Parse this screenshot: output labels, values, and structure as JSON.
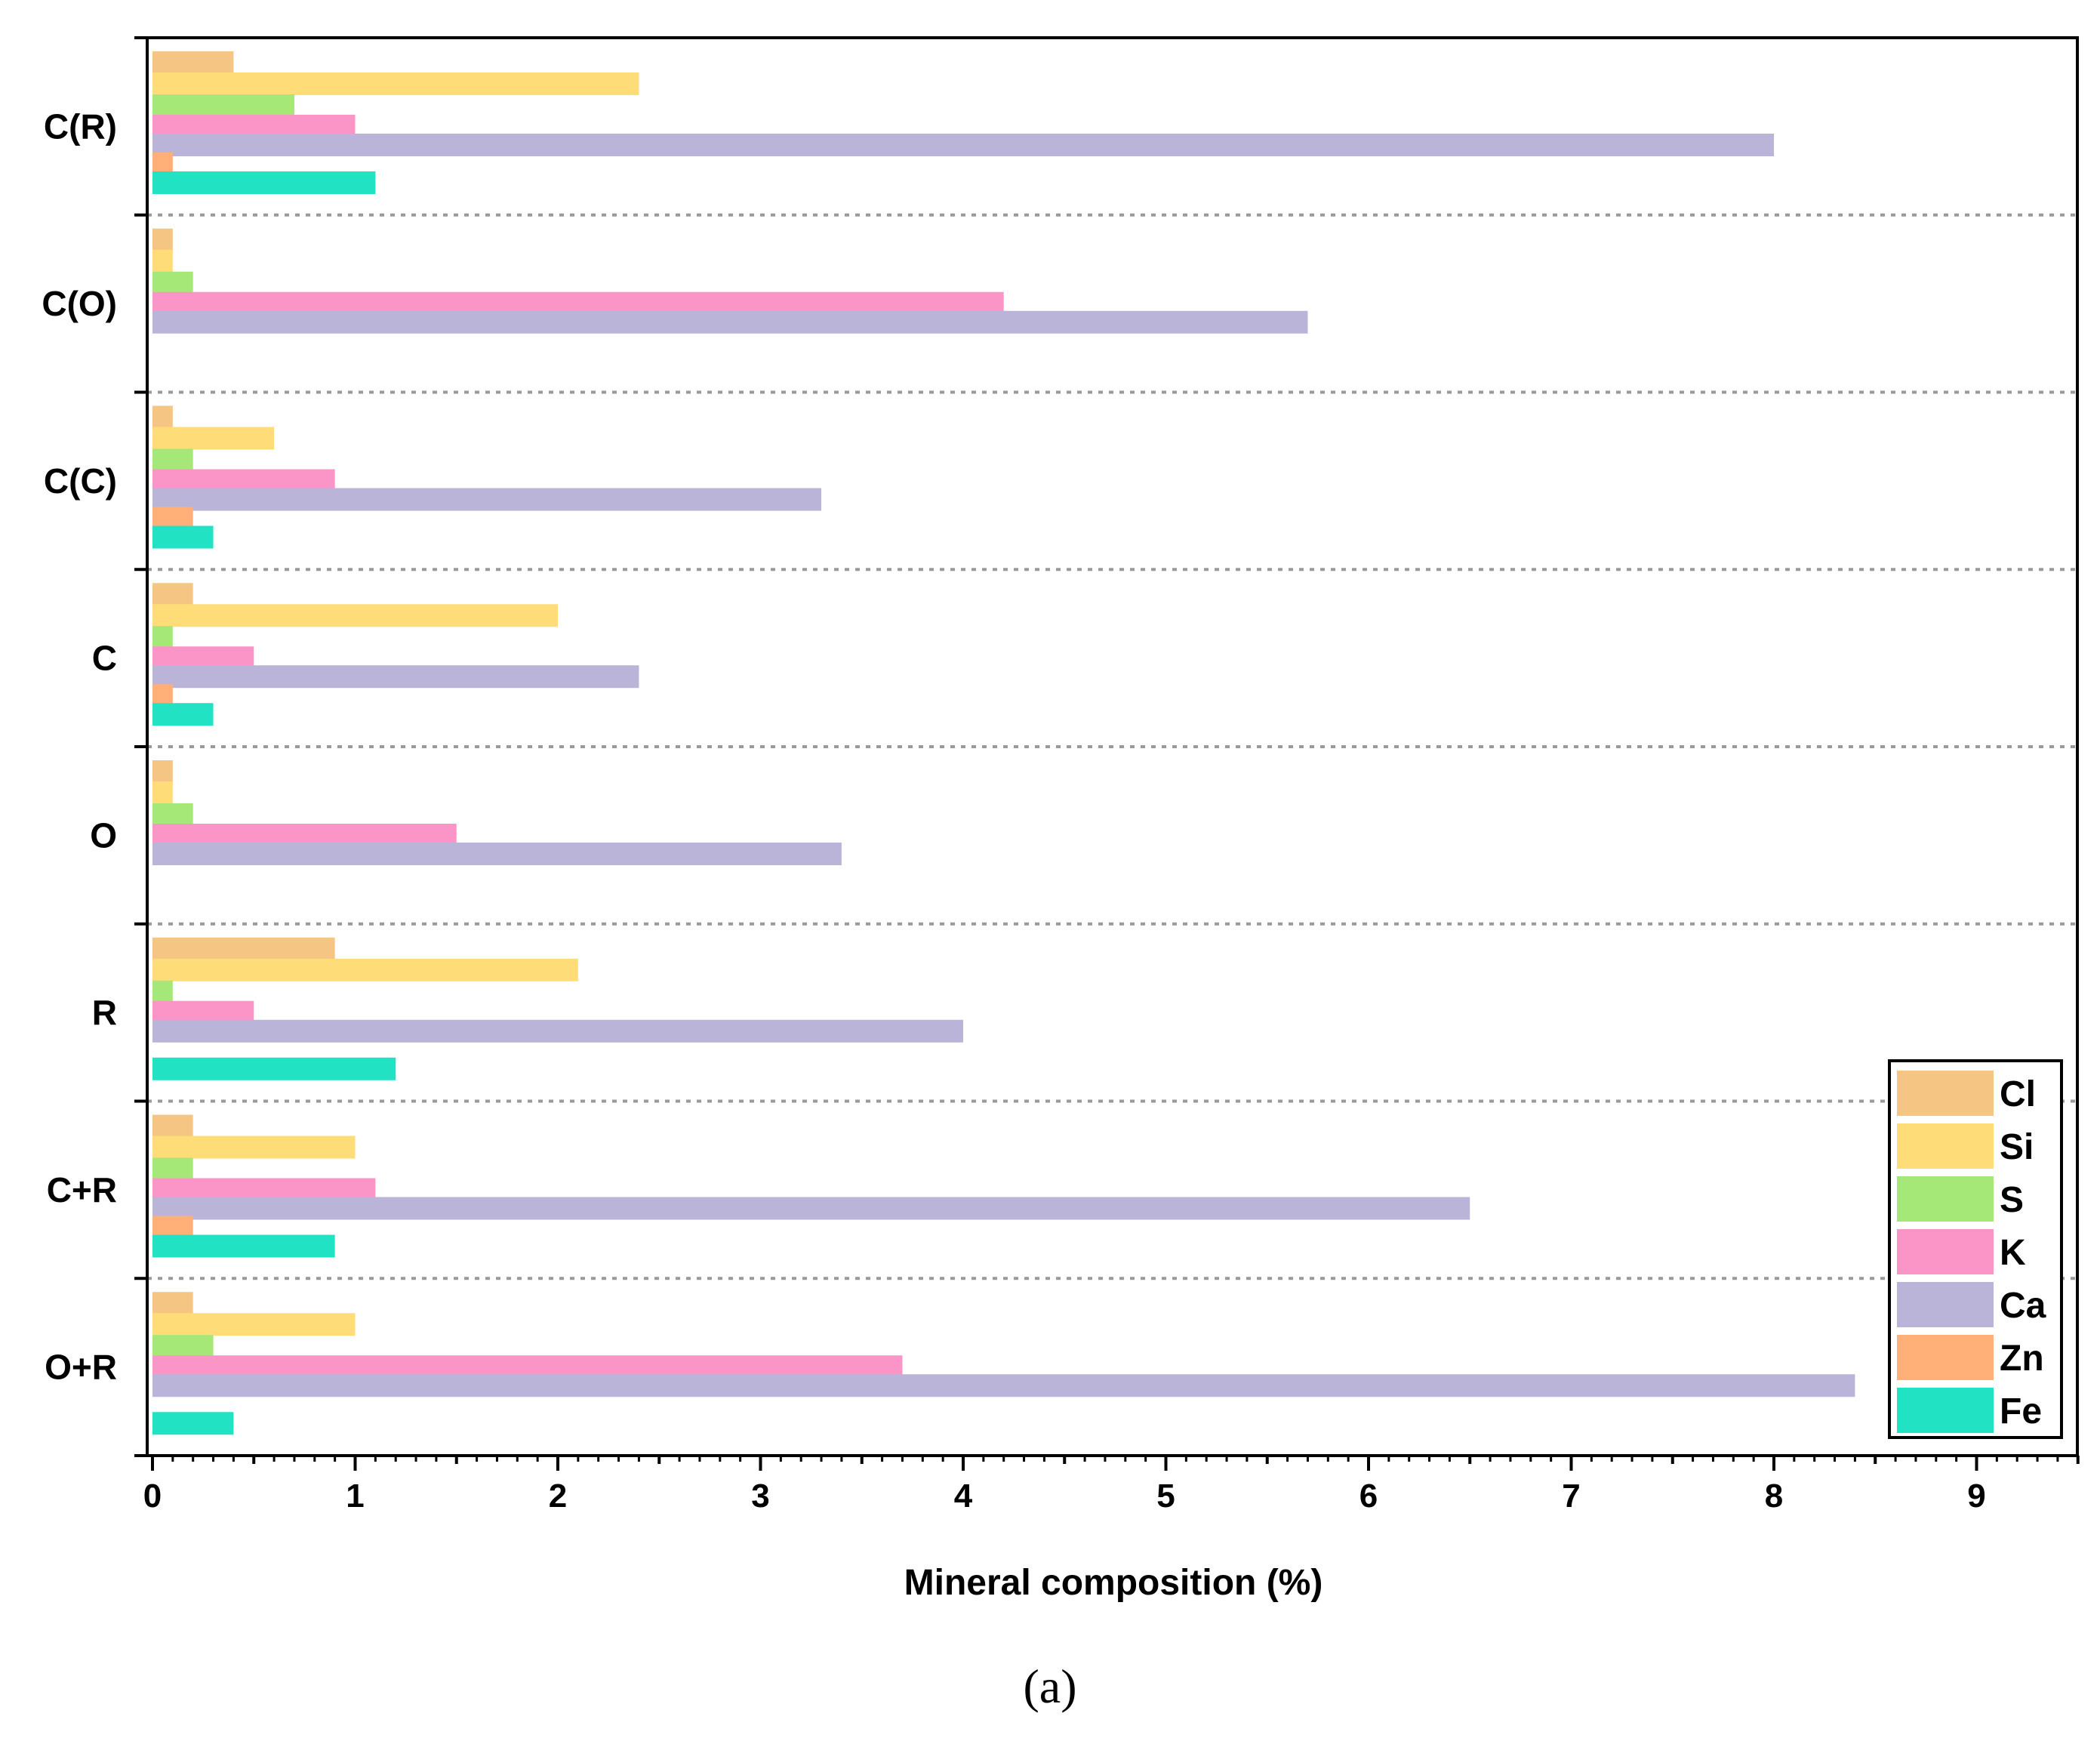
{
  "chart_data": {
    "type": "bar",
    "orientation": "horizontal",
    "categories": [
      "C(R)",
      "C(O)",
      "C(C)",
      "C",
      "O",
      "R",
      "C+R",
      "O+R"
    ],
    "series": [
      {
        "name": "Cl",
        "color": "#F4C583",
        "values": [
          0.4,
          0.1,
          0.1,
          0.2,
          0.1,
          0.9,
          0.2,
          0.2
        ]
      },
      {
        "name": "Si",
        "color": "#FEDD79",
        "values": [
          2.4,
          0.1,
          0.6,
          2.0,
          0.1,
          2.1,
          1.0,
          1.0
        ]
      },
      {
        "name": "S",
        "color": "#A6E877",
        "values": [
          0.7,
          0.2,
          0.2,
          0.1,
          0.2,
          0.1,
          0.2,
          0.3
        ]
      },
      {
        "name": "K",
        "color": "#FB95C7",
        "values": [
          1.0,
          4.2,
          0.9,
          0.5,
          1.5,
          0.5,
          1.1,
          3.7
        ]
      },
      {
        "name": "Ca",
        "color": "#BBB4D9",
        "values": [
          8.0,
          5.7,
          3.3,
          2.4,
          3.4,
          4.0,
          6.5,
          8.4
        ]
      },
      {
        "name": "Zn",
        "color": "#FFAF77",
        "values": [
          0.1,
          0.0,
          0.2,
          0.1,
          0.0,
          0.0,
          0.2,
          0.0
        ]
      },
      {
        "name": "Fe",
        "color": "#21E3C3",
        "values": [
          1.1,
          0.0,
          0.3,
          0.3,
          0.0,
          1.2,
          0.9,
          0.4
        ]
      }
    ],
    "xlim": [
      0,
      9.5
    ],
    "xticks": [
      "0",
      "1",
      "2",
      "3",
      "4",
      "5",
      "6",
      "7",
      "8",
      "9"
    ],
    "xlabel": "Mineral composition (%)",
    "ylabel": "",
    "title": "",
    "legend_position": "bottom-right",
    "grid": "dashed horizontal separators between categories"
  },
  "caption": "(a)"
}
